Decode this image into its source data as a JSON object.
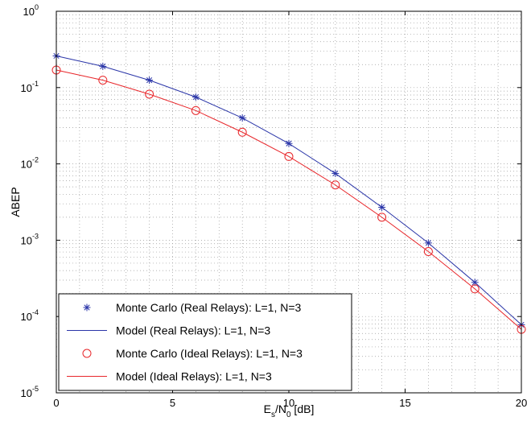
{
  "chart_data": {
    "type": "line",
    "xlabel": {
      "main": "E",
      "sub1": "s",
      "mid": "/N",
      "sub2": "0",
      "tail": " [dB]"
    },
    "ylabel": "ABEP",
    "xlim": [
      0,
      20
    ],
    "ylim": [
      1e-05,
      1
    ],
    "y_scale": "log",
    "grid": true,
    "x_ticks": [
      0,
      5,
      10,
      15,
      20
    ],
    "x_tick_labels": [
      "0",
      "5",
      "10",
      "15",
      "20"
    ],
    "y_tick_exponents": [
      0,
      -1,
      -2,
      -3,
      -4,
      -5
    ],
    "y_tick_base": "10",
    "y_tick_exponent_labels": [
      "0",
      "-1",
      "-2",
      "-3",
      "-4",
      "-5"
    ],
    "legend_position": "bottom-left",
    "x": [
      0,
      2,
      4,
      6,
      8,
      10,
      12,
      14,
      16,
      18,
      20
    ],
    "series": [
      {
        "name": "Monte Carlo (Real Relays): L=1, N=3",
        "style": "marker-star",
        "color": "#2a35a8",
        "values": [
          0.26,
          0.19,
          0.125,
          0.075,
          0.04,
          0.0185,
          0.0075,
          0.0027,
          0.00092,
          0.00028,
          7.8e-05
        ]
      },
      {
        "name": "Model (Real Relays): L=1, N=3",
        "style": "line",
        "color": "#2a35a8",
        "values": [
          0.26,
          0.19,
          0.125,
          0.075,
          0.04,
          0.0185,
          0.0075,
          0.0027,
          0.00092,
          0.00028,
          7.8e-05
        ]
      },
      {
        "name": "Monte Carlo (Ideal Relays): L=1, N=3",
        "style": "marker-circle",
        "color": "#e8262a",
        "values": [
          0.17,
          0.125,
          0.082,
          0.05,
          0.026,
          0.0125,
          0.0053,
          0.002,
          0.00071,
          0.00023,
          6.8e-05
        ]
      },
      {
        "name": "Model (Ideal Relays): L=1, N=3",
        "style": "line",
        "color": "#e8262a",
        "values": [
          0.17,
          0.125,
          0.082,
          0.05,
          0.026,
          0.0125,
          0.0053,
          0.002,
          0.00071,
          0.00023,
          6.8e-05
        ]
      }
    ]
  }
}
